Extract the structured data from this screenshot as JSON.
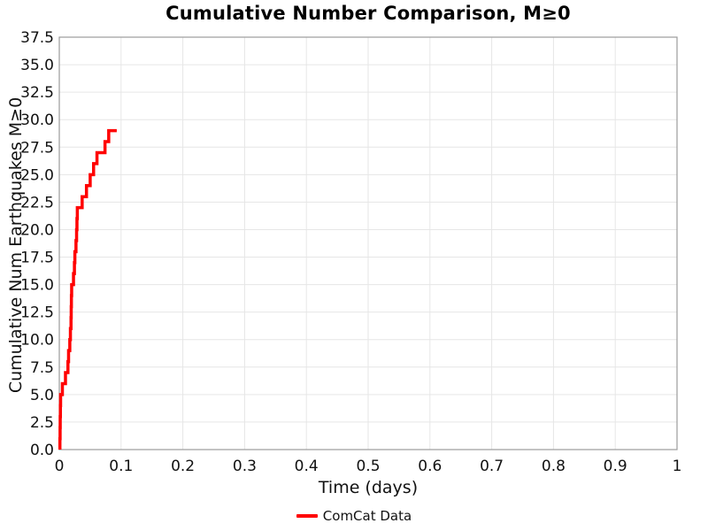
{
  "figure": {
    "title": "Cumulative Number Comparison, M≥0",
    "xlabel": "Time (days)",
    "ylabel": "Cumulative Num Earthquakes M≥0",
    "legend": [
      {
        "label": "ComCat Data",
        "color": "#ff0000"
      }
    ]
  },
  "chart_data": {
    "type": "line",
    "subtype": "cumulative-step",
    "title": "Cumulative Number Comparison, M≥0",
    "xlabel": "Time (days)",
    "ylabel": "Cumulative Num Earthquakes M≥0",
    "xlim": [
      0,
      1
    ],
    "ylim": [
      0,
      37.5
    ],
    "grid": true,
    "legend_position": "bottom-center",
    "xticks": [
      0,
      0.1,
      0.2,
      0.3,
      0.4,
      0.5,
      0.6,
      0.7,
      0.8,
      0.9,
      1
    ],
    "xtick_labels": [
      "0",
      "0.1",
      "0.2",
      "0.3",
      "0.4",
      "0.5",
      "0.6",
      "0.7",
      "0.8",
      "0.9",
      "1"
    ],
    "yticks": [
      0,
      2.5,
      5,
      7.5,
      10,
      12.5,
      15,
      17.5,
      20,
      22.5,
      25,
      27.5,
      30,
      32.5,
      35,
      37.5
    ],
    "ytick_labels": [
      "0.0",
      "2.5",
      "5.0",
      "7.5",
      "10.0",
      "12.5",
      "15.0",
      "17.5",
      "20.0",
      "22.5",
      "25.0",
      "27.5",
      "30.0",
      "32.5",
      "35.0",
      "37.5"
    ],
    "series": [
      {
        "name": "ComCat Data",
        "color": "#ff0000",
        "line_width": 3.5,
        "event_times_days": [
          0.001,
          0.0013,
          0.0015,
          0.0018,
          0.0021,
          0.005,
          0.01,
          0.014,
          0.015,
          0.017,
          0.018,
          0.019,
          0.0193,
          0.0196,
          0.02,
          0.023,
          0.0245,
          0.0252,
          0.027,
          0.028,
          0.0286,
          0.0292,
          0.037,
          0.044,
          0.05,
          0.0555,
          0.061,
          0.074,
          0.08
        ],
        "cumulative_counts": [
          1,
          2,
          3,
          4,
          5,
          6,
          7,
          8,
          9,
          10,
          11,
          12,
          13,
          14,
          15,
          16,
          17,
          18,
          19,
          20,
          21,
          22,
          23,
          24,
          25,
          26,
          27,
          28,
          29
        ],
        "total_events": 29,
        "line_end_time_days": 0.093
      }
    ]
  },
  "colors": {
    "background": "#ffffff",
    "grid": "#e6e6e6",
    "spine": "#9b9b9b",
    "text": "#111111",
    "series_red": "#ff0000"
  }
}
